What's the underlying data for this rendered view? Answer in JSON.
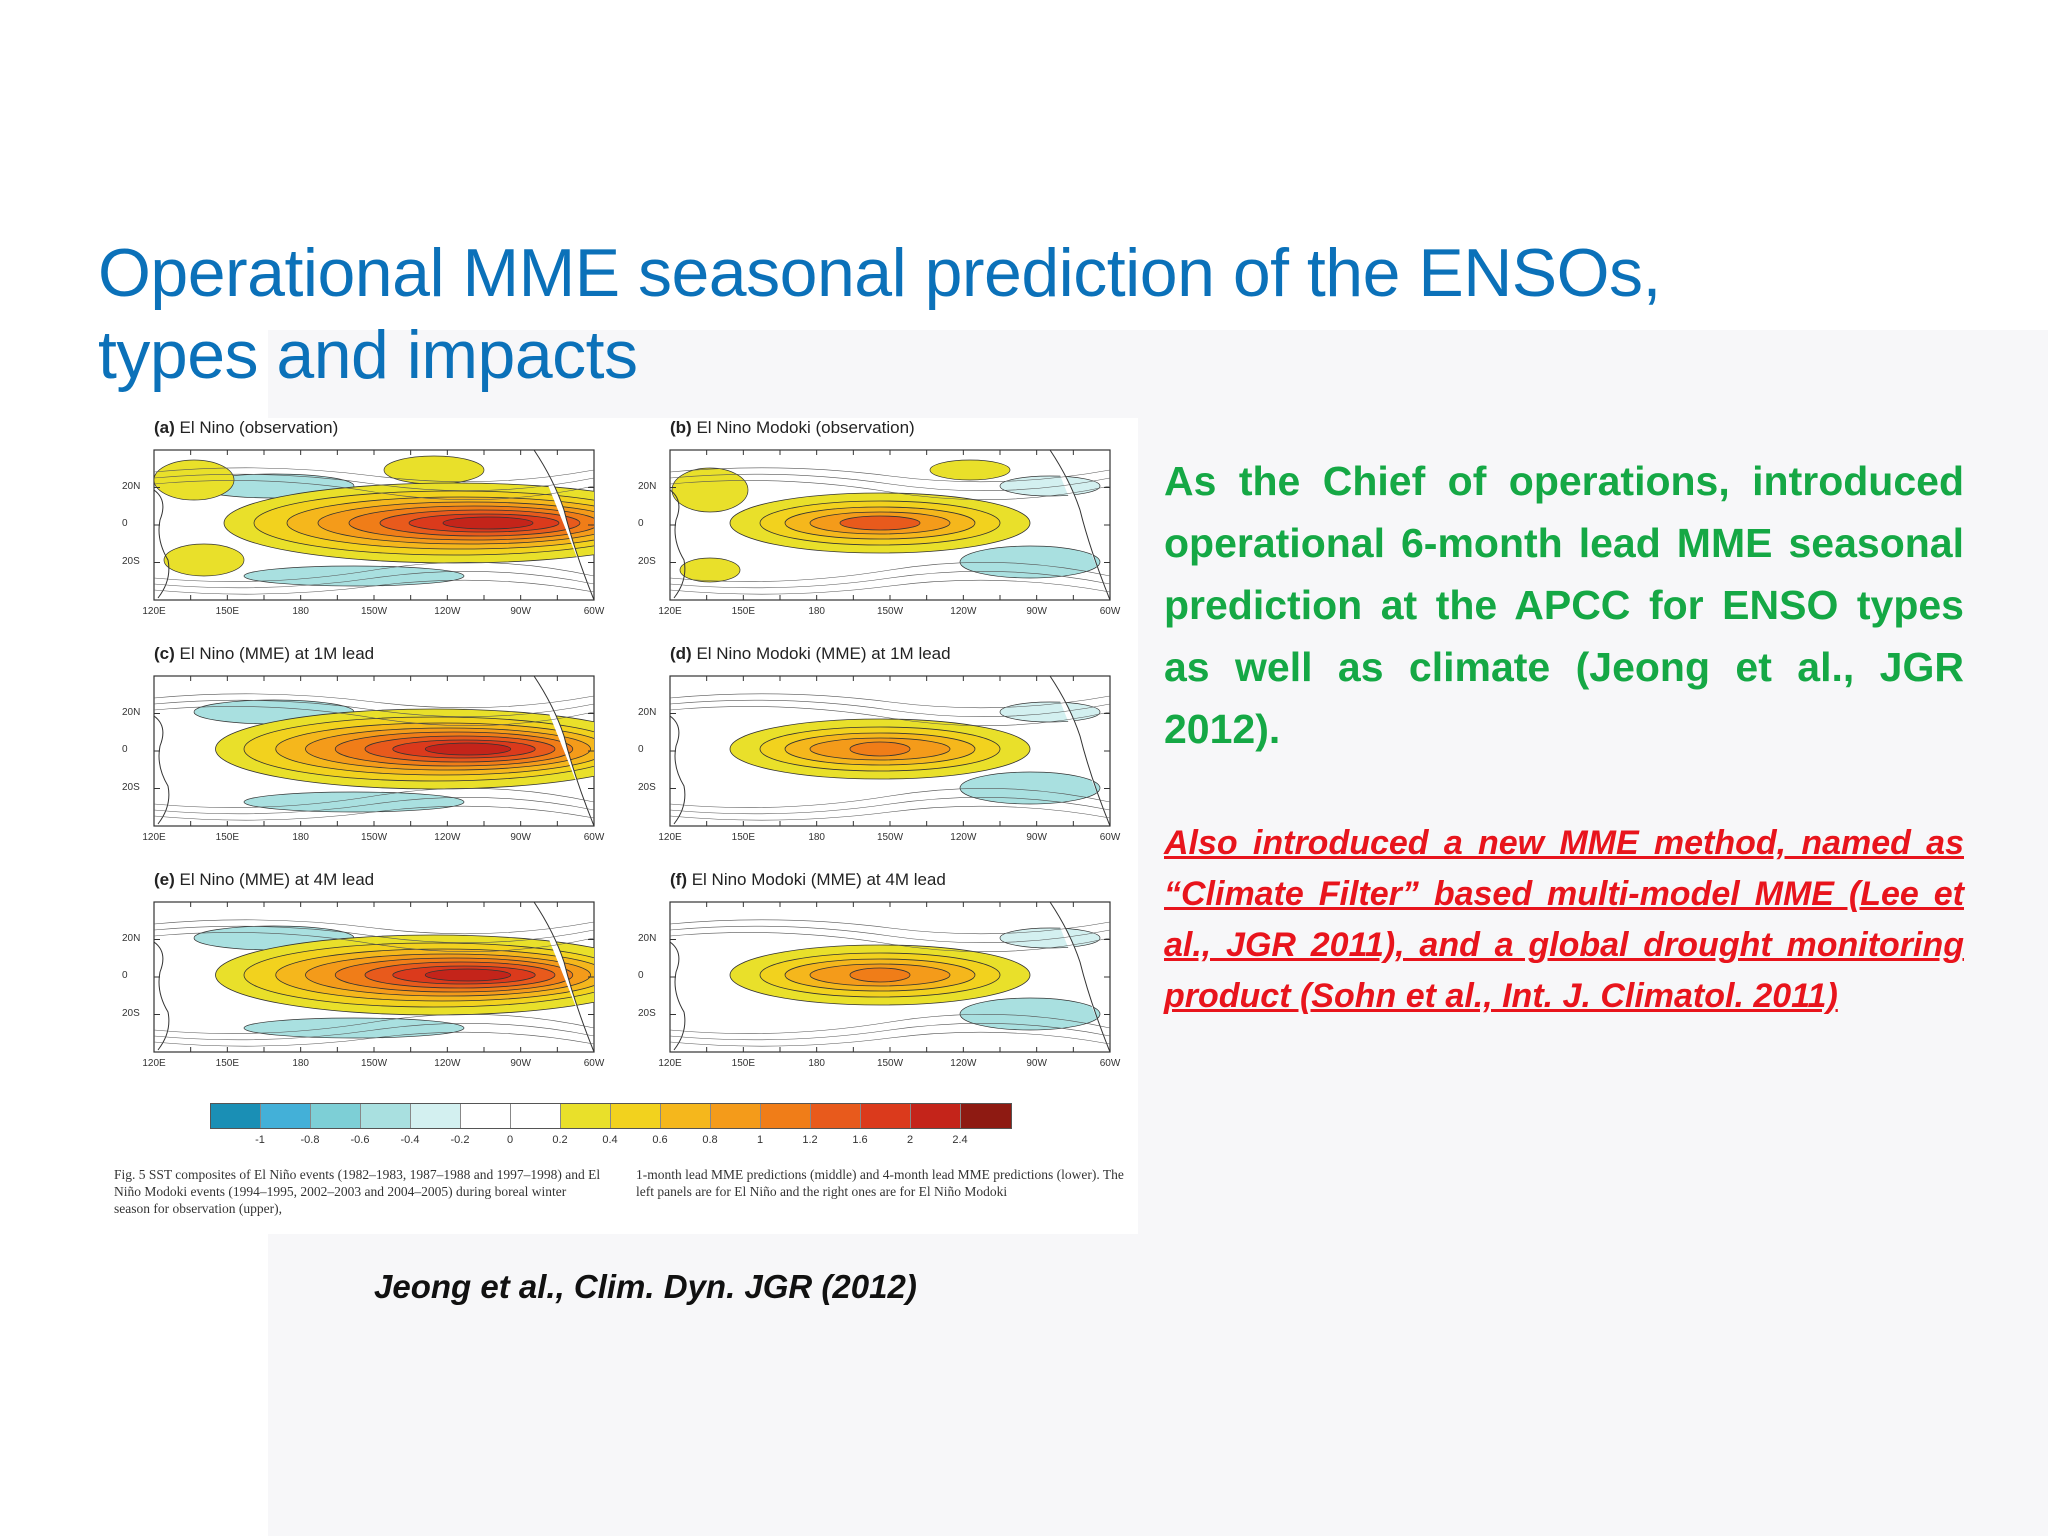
{
  "title": {
    "line1": "Operational MME seasonal prediction of the ENSOs,",
    "line2": "types and impacts"
  },
  "figure": {
    "panels": [
      {
        "tag": "(a)",
        "label": "El Nino (observation)",
        "pattern": "el-nino-observation"
      },
      {
        "tag": "(b)",
        "label": "El Nino Modoki (observation)",
        "pattern": "modoki-observation"
      },
      {
        "tag": "(c)",
        "label": "El Nino (MME) at 1M lead",
        "pattern": "el-nino-mme"
      },
      {
        "tag": "(d)",
        "label": "El Nino Modoki (MME) at 1M lead",
        "pattern": "modoki-mme"
      },
      {
        "tag": "(e)",
        "label": "El Nino (MME) at 4M lead",
        "pattern": "el-nino-mme"
      },
      {
        "tag": "(f)",
        "label": "El Nino Modoki (MME) at 4M lead",
        "pattern": "modoki-mme"
      }
    ],
    "lat_labels": [
      "20N",
      "0",
      "20S"
    ],
    "lon_labels": [
      "120E",
      "150E",
      "180",
      "150W",
      "120W",
      "90W",
      "60W"
    ],
    "colorbar": {
      "colors": [
        "#1a8fb5",
        "#43b0d8",
        "#7dcfd6",
        "#a9e0e0",
        "#d3f0f0",
        "#ffffff",
        "#ffffff",
        "#e9e02a",
        "#f2d21e",
        "#f5b71c",
        "#f49b1a",
        "#f07d18",
        "#e85a1c",
        "#db3a1c",
        "#c4241a",
        "#8e1a12"
      ],
      "ticks": [
        "-1",
        "-0.8",
        "-0.6",
        "-0.4",
        "-0.2",
        "0",
        "0.2",
        "0.4",
        "0.6",
        "0.8",
        "1",
        "1.2",
        "1.6",
        "2",
        "2.4"
      ]
    },
    "caption_left": "Fig. 5  SST composites of El Niño events (1982–1983, 1987–1988 and 1997–1998) and El Niño Modoki events (1994–1995, 2002–2003 and 2004–2005) during boreal winter season for observation (upper),",
    "caption_right": "1-month lead MME predictions (middle) and 4-month lead MME predictions (lower). The left panels are for El Niño and the right ones are for El Niño Modoki"
  },
  "citation": "Jeong et al., Clim. Dyn.  JGR (2012)",
  "green_paragraph": "As the Chief of operations, introduced operational 6-month lead MME seasonal prediction at the APCC for ENSO types as well as climate (Jeong et al., JGR 2012).",
  "red_paragraph": "Also introduced a new MME method, named as “Climate Filter” based multi-model MME (Lee et al.,  JGR 2011), and a global drought monitoring product (Sohn et al., Int. J. Climatol. 2011)",
  "colors": {
    "title": "#0b71b9",
    "green": "#15a845",
    "red": "#e8141c"
  }
}
